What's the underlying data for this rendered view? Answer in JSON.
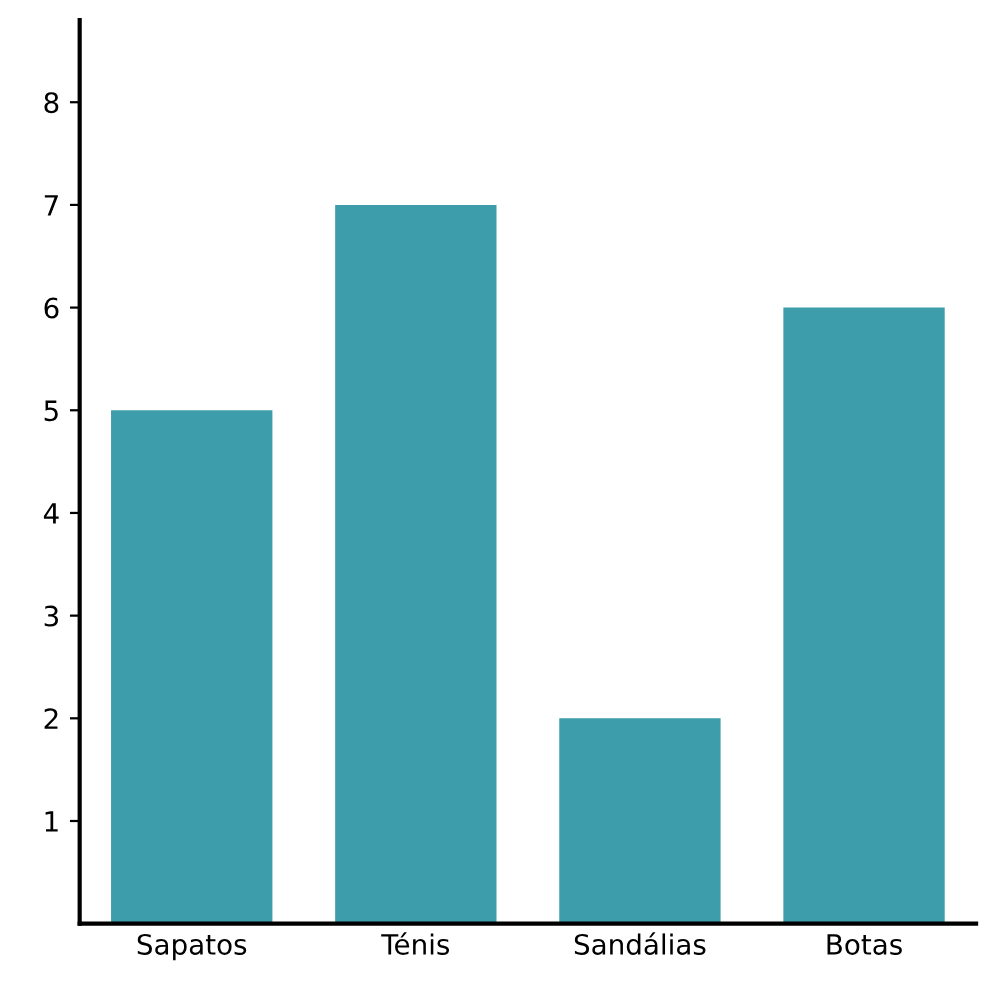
{
  "chart_data": {
    "type": "bar",
    "categories": [
      "Sapatos",
      "Ténis",
      "Sandálias",
      "Botas"
    ],
    "values": [
      5,
      7,
      2,
      6
    ],
    "color": "#3d9daa",
    "ylim": [
      0,
      8.8
    ],
    "yticks": [
      1,
      2,
      3,
      4,
      5,
      6,
      7,
      8
    ],
    "grid": false
  }
}
